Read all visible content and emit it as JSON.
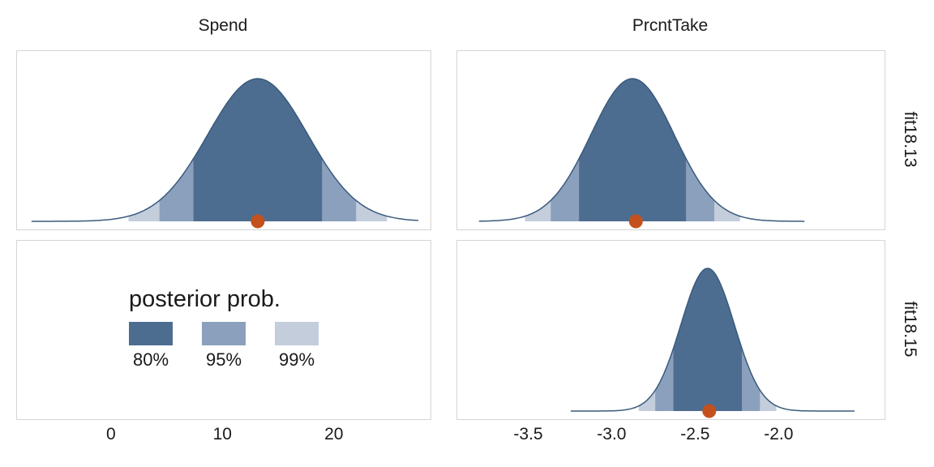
{
  "chart_data": {
    "type": "area",
    "subtype": "faceted-posterior-density",
    "facets": {
      "columns": [
        "Spend",
        "PrcntTake"
      ],
      "rows": [
        "fit18.13",
        "fit18.15"
      ]
    },
    "x_axes": [
      {
        "column": "Spend",
        "range": [
          -8.5,
          28.6
        ],
        "ticks": [
          {
            "value": 0,
            "label": "0"
          },
          {
            "value": 10,
            "label": "10"
          },
          {
            "value": 20,
            "label": "20"
          }
        ]
      },
      {
        "column": "PrcntTake",
        "range": [
          -3.93,
          -1.37
        ],
        "ticks": [
          {
            "value": -3.5,
            "label": "-3.5"
          },
          {
            "value": -3.0,
            "label": "-3.0"
          },
          {
            "value": -2.5,
            "label": "-2.5"
          },
          {
            "value": -2.0,
            "label": "-2.0"
          }
        ]
      }
    ],
    "panels": [
      {
        "row": "fit18.13",
        "col": "Spend",
        "distribution": "normal",
        "mean": 13.1,
        "sd": 4.5,
        "point_estimate": 13.1,
        "curve_range": [
          -7.2,
          27.5
        ]
      },
      {
        "row": "fit18.13",
        "col": "PrcntTake",
        "distribution": "normal",
        "mean": -2.88,
        "sd": 0.25,
        "point_estimate": -2.86,
        "curve_range": [
          -3.8,
          -1.85
        ]
      },
      {
        "row": "fit18.15",
        "col": "Spend",
        "distribution": "none",
        "contains": "legend"
      },
      {
        "row": "fit18.15",
        "col": "PrcntTake",
        "distribution": "normal",
        "mean": -2.43,
        "sd": 0.16,
        "point_estimate": -2.42,
        "curve_range": [
          -3.25,
          -1.55
        ]
      }
    ],
    "intervals": [
      {
        "label": "80%",
        "z": 1.2816,
        "fill": "#4d6d90"
      },
      {
        "label": "95%",
        "z": 1.96,
        "fill": "#8ba0bc"
      },
      {
        "label": "99%",
        "z": 2.5758,
        "fill": "#c3cddc"
      }
    ],
    "style": {
      "curve_color": "#3a5a7c",
      "point_color": "#c4501e",
      "panel_border": "#d5d5d5",
      "text_color": "#1a1a1a"
    },
    "legend": {
      "title": "posterior prob.",
      "entries": [
        "80%",
        "95%",
        "99%"
      ]
    }
  }
}
